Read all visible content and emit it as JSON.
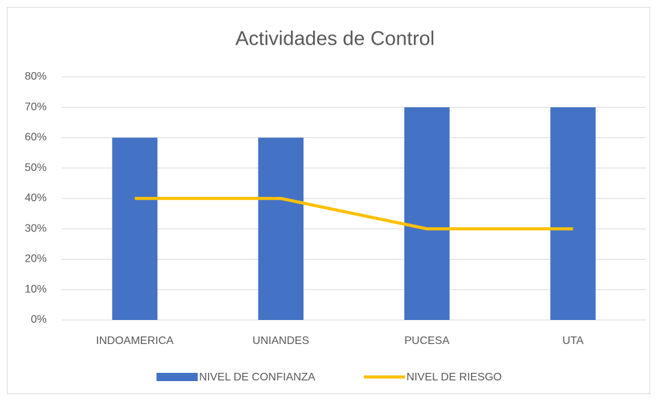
{
  "chart_data": {
    "type": "bar",
    "title": "Actividades de Control",
    "categories": [
      "INDOAMERICA",
      "UNIANDES",
      "PUCESA",
      "UTA"
    ],
    "series": [
      {
        "name": "NIVEL DE CONFIANZA",
        "type": "bar",
        "color": "#4472c4",
        "values": [
          60,
          60,
          70,
          70
        ]
      },
      {
        "name": "NIVEL DE RIESGO",
        "type": "line",
        "color": "#ffc000",
        "values": [
          40,
          40,
          30,
          30
        ]
      }
    ],
    "ylim": [
      0,
      80
    ],
    "yticks": [
      {
        "value": 0,
        "label": "0%"
      },
      {
        "value": 10,
        "label": "10%"
      },
      {
        "value": 20,
        "label": "20%"
      },
      {
        "value": 30,
        "label": "30%"
      },
      {
        "value": 40,
        "label": "40%"
      },
      {
        "value": 50,
        "label": "50%"
      },
      {
        "value": 60,
        "label": "60%"
      },
      {
        "value": 70,
        "label": "70%"
      },
      {
        "value": 80,
        "label": "80%"
      }
    ],
    "grid": true,
    "legend": "bottom"
  }
}
